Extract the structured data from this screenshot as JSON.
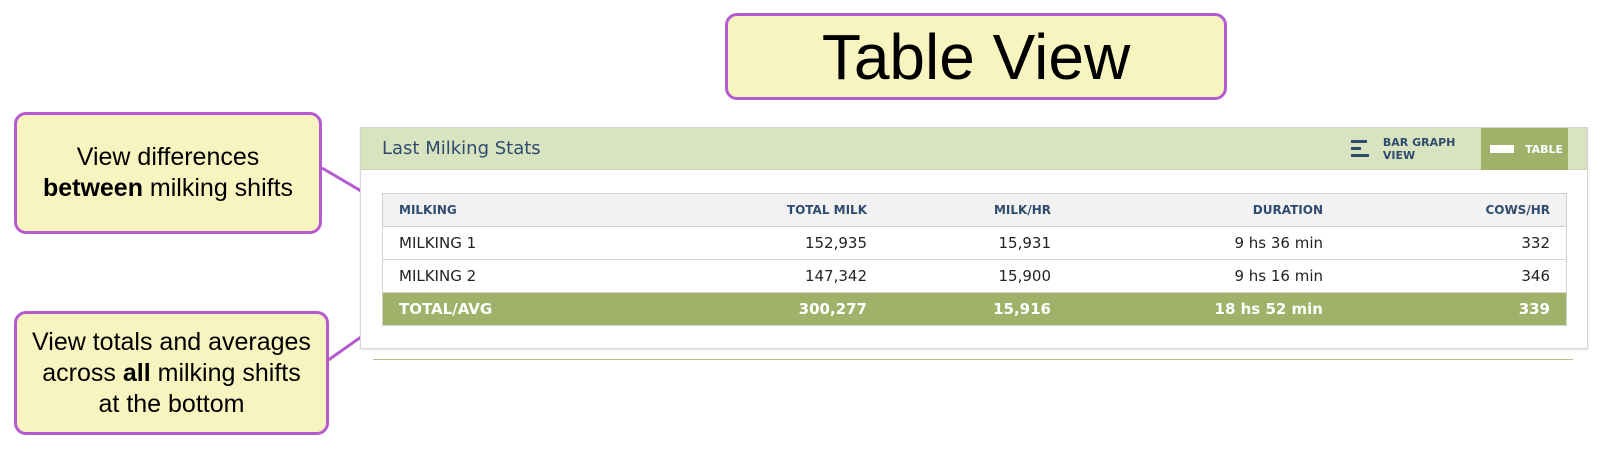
{
  "slide": {
    "title": "Table View",
    "callout_top": {
      "line1": "View differences",
      "line2_bold": "between",
      "line2_rest": " milking shifts"
    },
    "callout_bottom": {
      "line1": "View totals and averages",
      "line2_pre": "across ",
      "line2_bold": "all",
      "line2_rest": " milking shifts",
      "line3": "at the bottom"
    },
    "accent_color": "#b65ad0",
    "callout_fill": "#f7f4bf"
  },
  "panel": {
    "title": "Last Milking Stats",
    "bar_graph_label": "BAR GRAPH VIEW",
    "table_label": "TABLE",
    "active_view": "TABLE",
    "bar_graph_icon": "bar-chart-icon",
    "table_icon": "table-icon",
    "header_color": "#d8e3c0",
    "total_row_color": "#a0b16a"
  },
  "table": {
    "columns": [
      "MILKING",
      "TOTAL MILK",
      "MILK/HR",
      "DURATION",
      "COWS/HR"
    ],
    "rows": [
      [
        "MILKING 1",
        "152,935",
        "15,931",
        "9 hs 36 min",
        "332"
      ],
      [
        "MILKING 2",
        "147,342",
        "15,900",
        "9 hs 16 min",
        "346"
      ]
    ],
    "total": [
      "TOTAL/AVG",
      "300,277",
      "15,916",
      "18 hs 52 min",
      "339"
    ]
  }
}
